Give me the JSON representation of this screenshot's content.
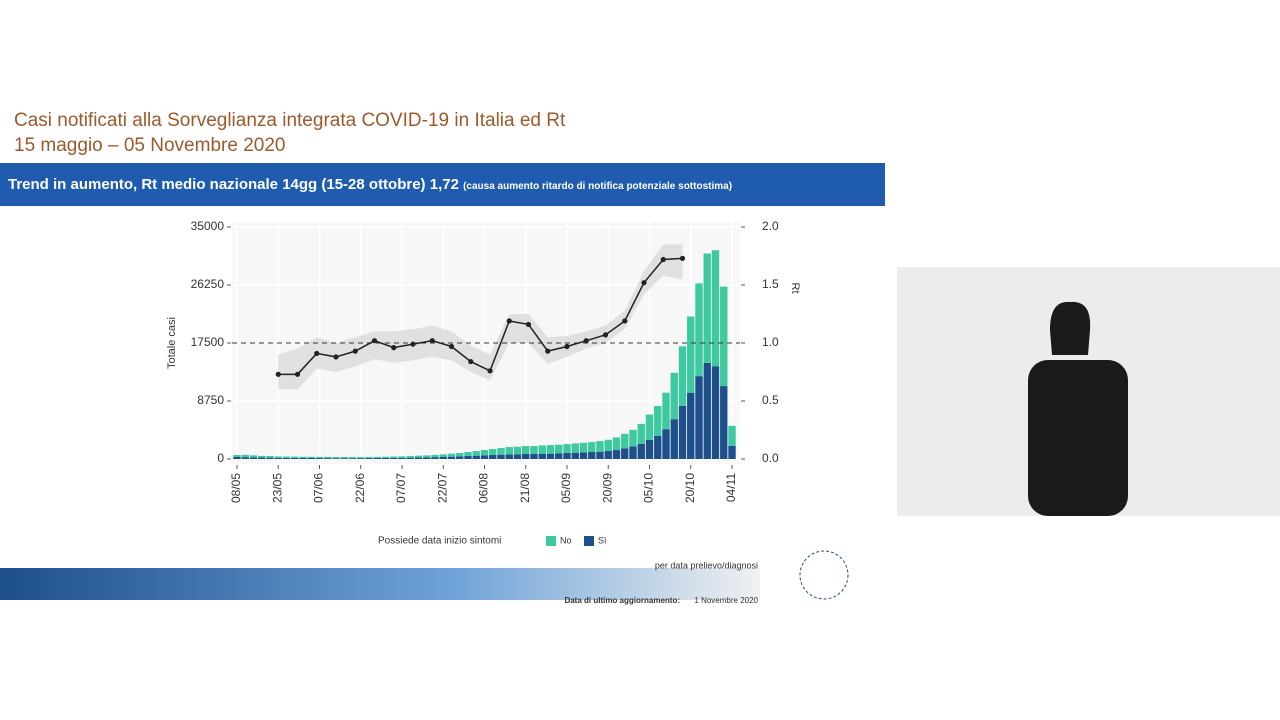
{
  "slide": {
    "title": "Casi notificati alla Sorveglianza integrata COVID-19 in Italia ed Rt",
    "subtitle": "15 maggio – 05 Novembre 2020",
    "banner": "Trend in aumento, Rt medio nazionale 14gg (15-28 ottobre) 1,72",
    "banner_note": "(causa aumento ritardo di notifica potenziale sottostima)",
    "footer_note": "per data prelievo/diagnosi",
    "update_label": "Data di ultimo aggiornamento:",
    "update_date": "1 Novembre 2020"
  },
  "chart_data": {
    "type": "bar",
    "stacked": true,
    "grid": true,
    "y_label": "Totale casi",
    "y2_label": "Rt",
    "legend_title": "Possiede data inizio sintomi",
    "categories": [
      "08/05",
      null,
      null,
      null,
      null,
      "23/05",
      null,
      null,
      null,
      null,
      "07/06",
      null,
      null,
      null,
      null,
      "22/06",
      null,
      null,
      null,
      null,
      "07/07",
      null,
      null,
      null,
      null,
      "22/07",
      null,
      null,
      null,
      null,
      "06/08",
      null,
      null,
      null,
      null,
      "21/08",
      null,
      null,
      null,
      null,
      "05/09",
      null,
      null,
      null,
      null,
      "20/09",
      null,
      null,
      null,
      null,
      "05/10",
      null,
      null,
      null,
      null,
      "20/10",
      null,
      null,
      null,
      null,
      "04/11"
    ],
    "series": [
      {
        "name": "No",
        "color": "#3ec9a0",
        "values": [
          300,
          350,
          300,
          250,
          250,
          200,
          200,
          200,
          180,
          180,
          170,
          170,
          160,
          160,
          150,
          150,
          160,
          170,
          180,
          200,
          220,
          250,
          280,
          300,
          350,
          400,
          450,
          500,
          600,
          700,
          800,
          900,
          1000,
          1100,
          1150,
          1200,
          1200,
          1250,
          1300,
          1300,
          1350,
          1400,
          1450,
          1500,
          1600,
          1700,
          1900,
          2200,
          2500,
          3000,
          3800,
          4500,
          5500,
          7000,
          9000,
          11500,
          14000,
          16500,
          17500,
          15000,
          3000
        ]
      },
      {
        "name": "Sì",
        "color": "#1d4f8a",
        "values": [
          300,
          280,
          250,
          220,
          200,
          180,
          170,
          160,
          150,
          150,
          140,
          140,
          130,
          130,
          130,
          130,
          140,
          150,
          160,
          170,
          180,
          200,
          220,
          250,
          280,
          300,
          350,
          400,
          450,
          500,
          550,
          600,
          650,
          700,
          700,
          750,
          750,
          800,
          800,
          850,
          900,
          950,
          1000,
          1050,
          1100,
          1200,
          1350,
          1600,
          1900,
          2300,
          2900,
          3500,
          4500,
          6000,
          8000,
          10000,
          12500,
          14500,
          14000,
          11000,
          2000
        ]
      }
    ],
    "rt": {
      "axis": "y2",
      "color": "#222222",
      "x": [
        15,
        22,
        29,
        36,
        43,
        50,
        57,
        64,
        71,
        78,
        85,
        92,
        99,
        106,
        113,
        120,
        127,
        134,
        141,
        148,
        155,
        162
      ],
      "values": [
        0.73,
        0.73,
        0.91,
        0.88,
        0.93,
        1.02,
        0.96,
        0.99,
        1.02,
        0.97,
        0.84,
        0.76,
        1.19,
        1.16,
        0.93,
        0.97,
        1.02,
        1.07,
        1.19,
        1.52,
        1.72,
        1.73
      ]
    },
    "band": {
      "color": "#d9d9d9",
      "lower": [
        0.6,
        0.6,
        0.78,
        0.75,
        0.8,
        0.86,
        0.83,
        0.85,
        0.88,
        0.85,
        0.75,
        0.68,
        1.0,
        1.0,
        0.82,
        0.88,
        0.95,
        1.0,
        1.12,
        1.42,
        1.58,
        1.55
      ],
      "upper": [
        0.9,
        0.95,
        1.05,
        1.0,
        1.05,
        1.1,
        1.1,
        1.12,
        1.15,
        1.1,
        0.98,
        0.9,
        1.25,
        1.25,
        1.05,
        1.06,
        1.1,
        1.15,
        1.28,
        1.62,
        1.85,
        1.85
      ]
    },
    "reference_line": 1.0,
    "ylim": [
      0,
      35000
    ],
    "yticks": [
      0,
      8750,
      17500,
      26250,
      35000
    ],
    "y2lim": [
      0,
      2
    ],
    "y2ticks": [
      {
        "value": 0,
        "label": "0.0"
      },
      0.5,
      {
        "value": 1,
        "label": "1.0"
      },
      1.5,
      {
        "value": 2,
        "label": "2.0"
      }
    ]
  }
}
